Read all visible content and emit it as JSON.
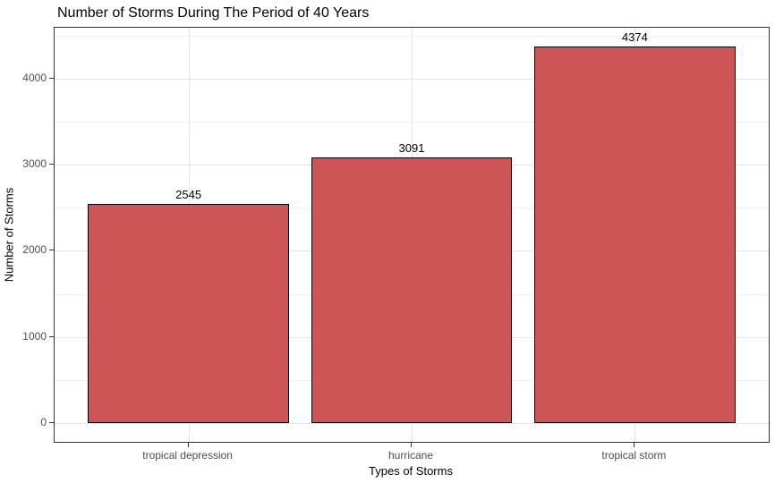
{
  "chart_data": {
    "type": "bar",
    "title": "Number of Storms During The Period of 40 Years",
    "xlabel": "Types of Storms",
    "ylabel": "Number of Storms",
    "categories": [
      "tropical depression",
      "hurricane",
      "tropical storm"
    ],
    "values": [
      2545,
      3091,
      4374
    ],
    "bar_labels": [
      "2545",
      "3091",
      "4374"
    ],
    "y_ticks": [
      0,
      1000,
      2000,
      3000,
      4000
    ],
    "y_minor_ticks": [
      500,
      1500,
      2500,
      3500,
      4500
    ],
    "ylim": [
      -218.7,
      4592.7
    ],
    "bar_width_fraction": 0.9,
    "grid": true,
    "legend": "none",
    "colors": {
      "bar_fill": "#CD5556",
      "bar_border": "#000000",
      "grid_major": "#E4E4E4",
      "grid_minor": "#F0F0F0",
      "panel_border": "#333333",
      "axis_text": "#4D4D4D",
      "title_text": "#000000",
      "background": "#FFFFFF"
    }
  }
}
